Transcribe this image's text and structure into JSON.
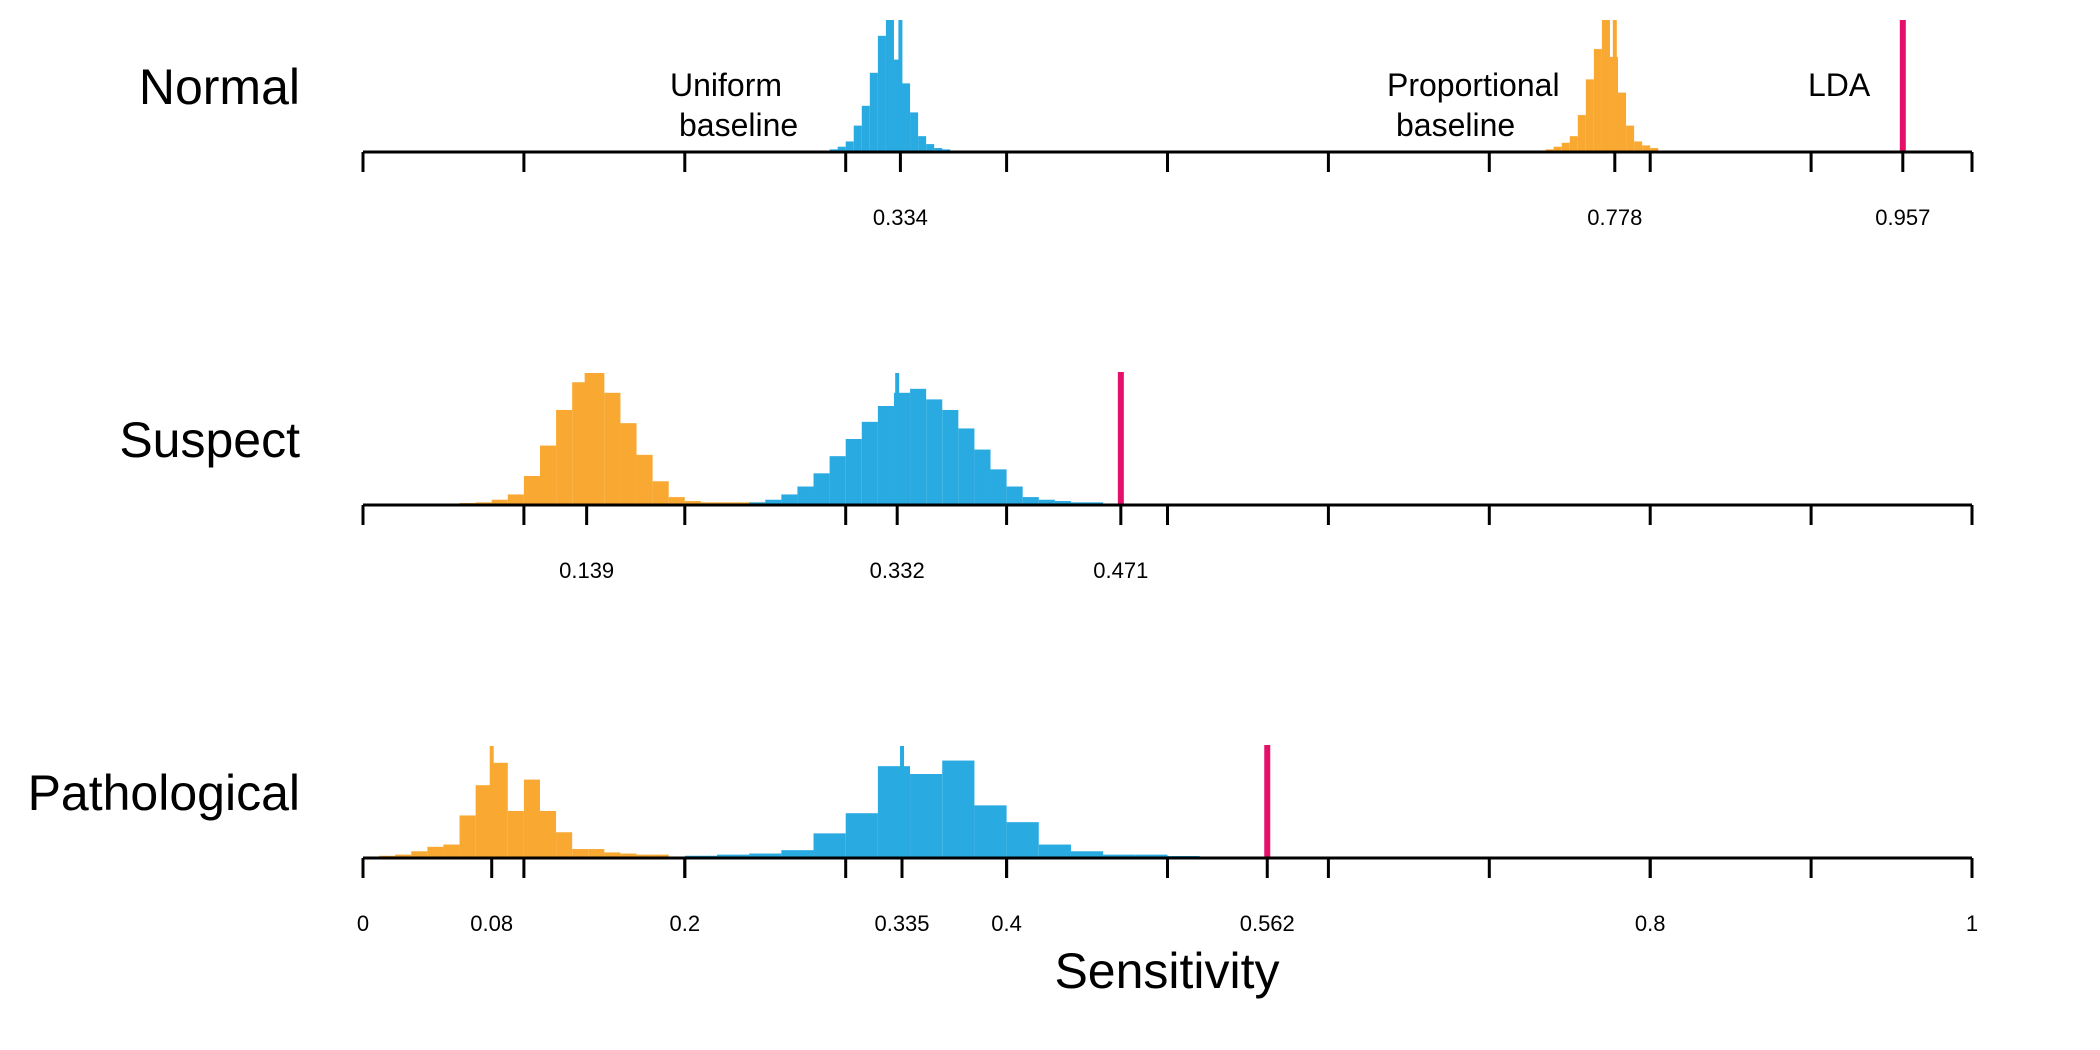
{
  "chart_data": {
    "type": "histogram",
    "xlabel": "Sensitivity",
    "xlim": [
      0,
      1
    ],
    "colors": {
      "uniform": "#29ABE2",
      "proportional": "#F9A932",
      "lda": "#E5106A"
    },
    "annotations": {
      "uniform_line1": "Uniform",
      "uniform_line2": "baseline",
      "proportional_line1": "Proportional",
      "proportional_line2": "baseline",
      "lda": "LDA"
    },
    "panels": [
      {
        "name": "Normal",
        "major_ticks": [
          0,
          0.1,
          0.2,
          0.3,
          0.4,
          0.5,
          0.6,
          0.7,
          0.8,
          0.9,
          1
        ],
        "tick_labels": [
          {
            "value": 0.334,
            "label": "0.334"
          },
          {
            "value": 0.778,
            "label": "0.778"
          },
          {
            "value": 0.957,
            "label": "0.957"
          }
        ],
        "uniform_mean": 0.334,
        "proportional_mean": 0.778,
        "lda": 0.957,
        "uniform_hist": {
          "start": 0.29,
          "width": 0.005,
          "heights": [
            0.02,
            0.04,
            0.08,
            0.2,
            0.35,
            0.6,
            0.88,
            1.0,
            0.7,
            0.52,
            0.3,
            0.12,
            0.06,
            0.03,
            0.02
          ]
        },
        "proportional_hist": {
          "start": 0.735,
          "width": 0.005,
          "heights": [
            0.02,
            0.04,
            0.07,
            0.12,
            0.28,
            0.55,
            0.78,
            1.0,
            0.72,
            0.45,
            0.2,
            0.08,
            0.05,
            0.03
          ]
        }
      },
      {
        "name": "Suspect",
        "major_ticks": [
          0,
          0.1,
          0.2,
          0.3,
          0.4,
          0.5,
          0.6,
          0.7,
          0.8,
          0.9,
          1
        ],
        "tick_labels": [
          {
            "value": 0.139,
            "label": "0.139"
          },
          {
            "value": 0.332,
            "label": "0.332"
          },
          {
            "value": 0.471,
            "label": "0.471"
          }
        ],
        "uniform_mean": 0.332,
        "proportional_mean": 0.139,
        "lda": 0.471,
        "uniform_hist": {
          "start": 0.24,
          "width": 0.01,
          "heights": [
            0.02,
            0.04,
            0.08,
            0.14,
            0.24,
            0.37,
            0.5,
            0.63,
            0.75,
            0.85,
            0.88,
            0.8,
            0.72,
            0.58,
            0.42,
            0.27,
            0.14,
            0.06,
            0.04,
            0.03,
            0.02,
            0.02
          ]
        },
        "proportional_hist": {
          "start": 0.06,
          "width": 0.01,
          "heights": [
            0.01,
            0.02,
            0.04,
            0.08,
            0.22,
            0.45,
            0.72,
            0.93,
            1.0,
            0.85,
            0.62,
            0.38,
            0.18,
            0.06,
            0.03,
            0.02,
            0.02,
            0.02,
            0.02,
            0.01
          ]
        }
      },
      {
        "name": "Pathological",
        "major_ticks": [
          0,
          0.1,
          0.2,
          0.3,
          0.4,
          0.5,
          0.6,
          0.7,
          0.8,
          0.9,
          1
        ],
        "tick_labels": [
          {
            "value": 0,
            "label": "0"
          },
          {
            "value": 0.08,
            "label": "0.08"
          },
          {
            "value": 0.2,
            "label": "0.2"
          },
          {
            "value": 0.335,
            "label": "0.335"
          },
          {
            "value": 0.4,
            "label": "0.4"
          },
          {
            "value": 0.562,
            "label": "0.562"
          },
          {
            "value": 0.8,
            "label": "0.8"
          },
          {
            "value": 1,
            "label": "1"
          }
        ],
        "uniform_mean": 0.335,
        "proportional_mean": 0.08,
        "lda": 0.562,
        "uniform_hist": {
          "start": 0.2,
          "width": 0.02,
          "heights": [
            0.02,
            0.03,
            0.04,
            0.07,
            0.22,
            0.4,
            0.82,
            0.75,
            0.87,
            0.47,
            0.32,
            0.12,
            0.06,
            0.03,
            0.03,
            0.01
          ]
        },
        "proportional_hist": {
          "start": 0.01,
          "width": 0.01,
          "heights": [
            0.02,
            0.03,
            0.06,
            0.1,
            0.12,
            0.38,
            0.65,
            0.85,
            0.42,
            0.7,
            0.42,
            0.23,
            0.08,
            0.08,
            0.05,
            0.04,
            0.03,
            0.03
          ]
        }
      }
    ]
  }
}
